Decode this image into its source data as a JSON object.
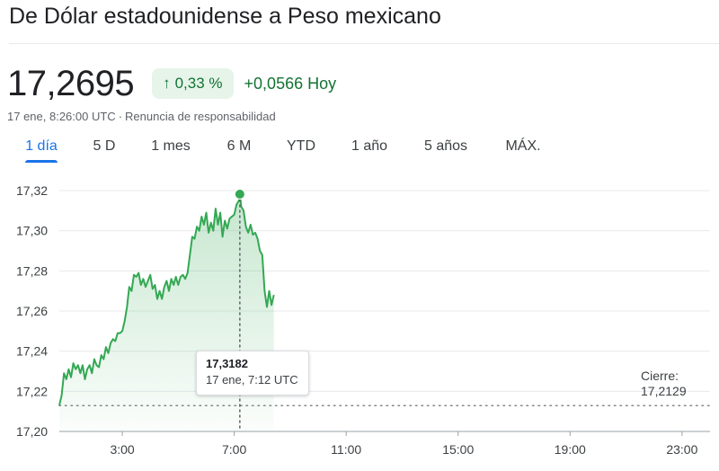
{
  "header": {
    "title": "De Dólar estadounidense a Peso mexicano"
  },
  "quote": {
    "price": "17,2695",
    "change_arrow": "↑",
    "change_percent": "0,33 %",
    "change_abs": "+0,0566 Hoy",
    "timestamp": "17 ene, 8:26:00 UTC",
    "separator": "·",
    "disclaimer": "Renuncia de responsabilidad"
  },
  "tabs": [
    {
      "label": "1 día",
      "active": true
    },
    {
      "label": "5 D",
      "active": false
    },
    {
      "label": "1 mes",
      "active": false
    },
    {
      "label": "6 M",
      "active": false
    },
    {
      "label": "YTD",
      "active": false
    },
    {
      "label": "1 año",
      "active": false
    },
    {
      "label": "5 años",
      "active": false
    },
    {
      "label": "MÁX.",
      "active": false
    }
  ],
  "tooltip": {
    "value": "17,3182",
    "time": "17 ene, 7:12 UTC"
  },
  "close": {
    "label": "Cierre:",
    "value": "17,2129"
  },
  "colors": {
    "line": "#34a853",
    "positive_text": "#137333",
    "chip_bg": "#e6f4ea",
    "accent": "#1a73e8"
  },
  "chart_data": {
    "type": "line",
    "title": "",
    "xlabel": "",
    "ylabel": "",
    "ylim": [
      17.2,
      17.32
    ],
    "xlim": [
      "0:45",
      "24:00"
    ],
    "y_ticks": [
      "17,20",
      "17,22",
      "17,24",
      "17,26",
      "17,28",
      "17,30",
      "17,32"
    ],
    "y_tick_values": [
      17.2,
      17.22,
      17.24,
      17.26,
      17.28,
      17.3,
      17.32
    ],
    "x_ticks": [
      "3:00",
      "7:00",
      "11:00",
      "15:00",
      "19:00",
      "23:00"
    ],
    "x_tick_values": [
      "3:00",
      "7:00",
      "11:00",
      "15:00",
      "19:00",
      "23:00"
    ],
    "grid": true,
    "previous_close": 17.2129,
    "highlight_point": {
      "x": "7:12",
      "y": 17.3182
    },
    "series": [
      {
        "x": [
          "0:45",
          "0:50",
          "0:55",
          "1:00",
          "1:05",
          "1:10",
          "1:15",
          "1:20",
          "1:25",
          "1:30",
          "1:35",
          "1:40",
          "1:45",
          "1:50",
          "1:55",
          "2:00",
          "2:05",
          "2:10",
          "2:15",
          "2:20",
          "2:25",
          "2:30",
          "2:35",
          "2:40",
          "2:45",
          "2:50",
          "2:55",
          "3:00",
          "3:05",
          "3:10",
          "3:15",
          "3:20",
          "3:25",
          "3:30",
          "3:35",
          "3:40",
          "3:45",
          "3:50",
          "3:55",
          "4:00",
          "4:05",
          "4:10",
          "4:15",
          "4:20",
          "4:25",
          "4:30",
          "4:35",
          "4:40",
          "4:45",
          "4:50",
          "4:55",
          "5:00",
          "5:05",
          "5:10",
          "5:15",
          "5:20",
          "5:25",
          "5:30",
          "5:35",
          "5:40",
          "5:45",
          "5:50",
          "5:55",
          "6:00",
          "6:05",
          "6:10",
          "6:15",
          "6:20",
          "6:25",
          "6:30",
          "6:35",
          "6:40",
          "6:45",
          "6:50",
          "6:55",
          "7:00",
          "7:05",
          "7:10",
          "7:12",
          "7:15",
          "7:20",
          "7:25",
          "7:30",
          "7:35",
          "7:40",
          "7:45",
          "7:50",
          "7:55",
          "8:00",
          "8:05",
          "8:10",
          "8:15",
          "8:20",
          "8:25"
        ],
        "y": [
          17.213,
          17.218,
          17.229,
          17.226,
          17.231,
          17.227,
          17.234,
          17.231,
          17.233,
          17.229,
          17.233,
          17.226,
          17.231,
          17.233,
          17.229,
          17.236,
          17.233,
          17.232,
          17.238,
          17.236,
          17.242,
          17.239,
          17.244,
          17.246,
          17.245,
          17.249,
          17.249,
          17.25,
          17.255,
          17.262,
          17.272,
          17.27,
          17.278,
          17.277,
          17.279,
          17.273,
          17.276,
          17.272,
          17.275,
          17.278,
          17.271,
          17.273,
          17.266,
          17.27,
          17.266,
          17.272,
          17.275,
          17.27,
          17.276,
          17.273,
          17.277,
          17.273,
          17.277,
          17.278,
          17.276,
          17.279,
          17.288,
          17.297,
          17.296,
          17.302,
          17.3,
          17.307,
          17.303,
          17.309,
          17.299,
          17.304,
          17.3,
          17.311,
          17.303,
          17.309,
          17.297,
          17.305,
          17.301,
          17.306,
          17.307,
          17.308,
          17.313,
          17.315,
          17.3182,
          17.312,
          17.31,
          17.302,
          17.299,
          17.303,
          17.298,
          17.299,
          17.296,
          17.29,
          17.288,
          17.27,
          17.262,
          17.27,
          17.263,
          17.268
        ]
      }
    ]
  }
}
